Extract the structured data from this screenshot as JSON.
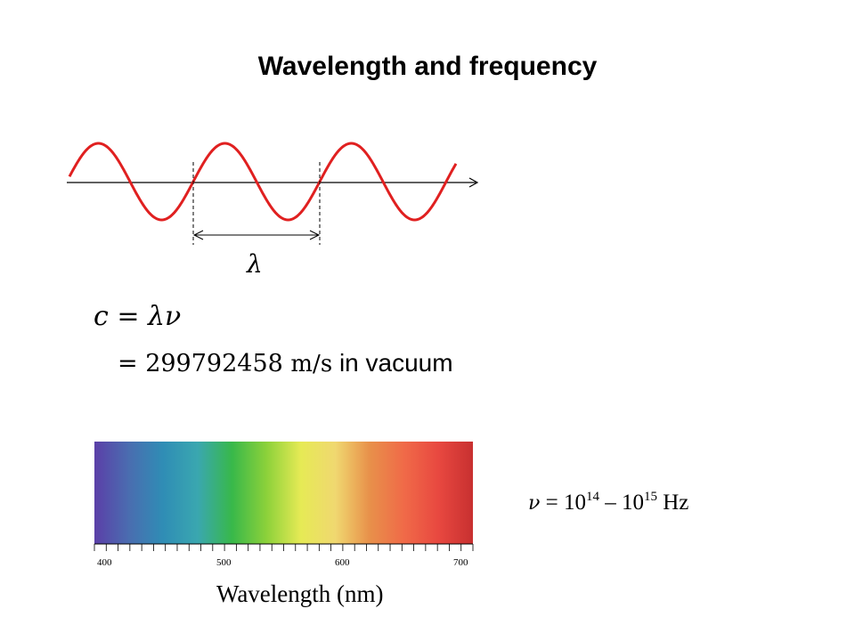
{
  "slide": {
    "title": "Wavelength and frequency"
  },
  "wave": {
    "wavelength_symbol": "λ",
    "wave_color": "#e02020"
  },
  "equations": {
    "line1": "c = λν",
    "line2_prefix": "= 299792458 ",
    "line2_unit": "m/s",
    "line2_suffix": " in vacuum"
  },
  "spectrum": {
    "tick_labels": [
      "400",
      "500",
      "600",
      "700"
    ],
    "axis_title": "Wavelength  (nm)",
    "colors": [
      "#5b3fa8",
      "#4a6db0",
      "#2f8db5",
      "#3aa7b0",
      "#38b84a",
      "#8cd13a",
      "#e6ea55",
      "#f0d870",
      "#e8904a",
      "#f06a48",
      "#e84840",
      "#c83030"
    ]
  },
  "frequency": {
    "symbol": "ν",
    "text": " = 10",
    "exp1": "14",
    "dash": " – 10",
    "exp2": "15",
    "unit": " Hz"
  }
}
